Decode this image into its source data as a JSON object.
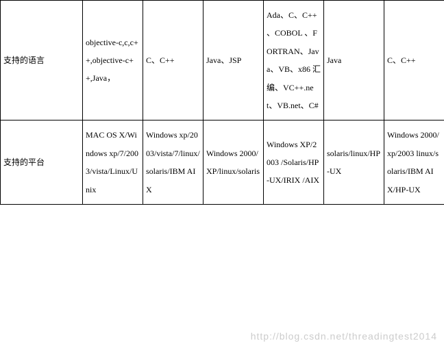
{
  "table": {
    "rows": [
      {
        "header": "支持的语言",
        "cells": [
          "objective-c,c,c++,objective-c++,Java，",
          "C、C++",
          "Java、JSP",
          "Ada、C、C++   、COBOL  、FORTRAN、Java、VB、x86 汇编、VC++.net、VB.net、C#",
          "Java",
          "C、C++"
        ]
      },
      {
        "header": "支持的平台",
        "cells": [
          "MAC  OS X/Windows xp/7/2003/vista/Linux/Unix",
          "Windows xp/2003/vista/7/linux/solaris/IBM AIX",
          "Windows 2000/XP/linux/solaris",
          "Windows XP/2003 /Solaris/HP-UX/IRIX   /AIX",
          "solaris/linux/HP-UX",
          "Windows 2000/xp/2003 linux/solaris/IBM AIX/HP-UX"
        ]
      }
    ]
  },
  "watermark": "http://blog.csdn.net/threadingtest2014",
  "styles": {
    "border_color": "#000000",
    "text_color": "#000000",
    "background_color": "#ffffff",
    "watermark_color": "#cccccc",
    "underline_color": "#ff0000",
    "font_size": 12,
    "line_height": 2.2,
    "header_col_width": 120,
    "data_col_width": 88
  }
}
